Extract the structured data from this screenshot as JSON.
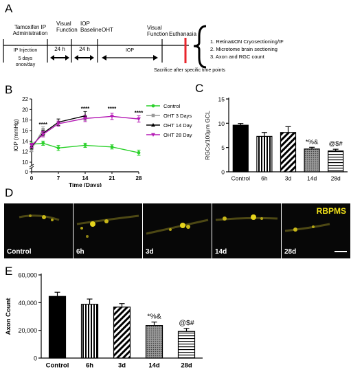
{
  "panels": {
    "a": "A",
    "b": "B",
    "c": "C",
    "d": "D",
    "e": "E"
  },
  "timeline": {
    "tamoxifen_line1": "Tamoxifen IP",
    "tamoxifen_line2": "Administration",
    "visual_function_1a": "Visual",
    "visual_function_1b": "Function",
    "iop_baseline_a": "IOP",
    "iop_baseline_b": "Baseline",
    "oht": "OHT",
    "visual_function_2a": "Visual",
    "visual_function_2b": "Function",
    "euthanasia": "Euthanasia",
    "ip_injection": "IP Injection",
    "interval_1": "24 h",
    "interval_2": "24 h",
    "iop": "IOP",
    "dosing_a": "5 days",
    "dosing_b": "once/day",
    "sacrifice": "Sacrifice after specific time points",
    "outcomes": [
      "1.  Retina&ON Cryosectioning/IF",
      "2.  Microtome brain sectioning",
      "3.  Axon and RGC count"
    ],
    "colors": {
      "euthanasia_line": "#e8242c"
    }
  },
  "chart_b": {
    "type": "line",
    "ylabel": "IOP (mmHg)",
    "xlabel": "Time (Days)",
    "ylim": [
      0,
      22
    ],
    "yticks": [
      0,
      10,
      12,
      14,
      16,
      18,
      20,
      22
    ],
    "xticks": [
      0,
      7,
      14,
      21,
      28
    ],
    "series": [
      {
        "name": "Control",
        "color": "#2bd12b",
        "marker": "circle",
        "x": [
          0,
          3,
          7,
          14,
          21,
          28
        ],
        "y": [
          13.4,
          13.6,
          12.7,
          13.2,
          12.9,
          11.8
        ],
        "err": [
          0.4,
          0.4,
          0.5,
          0.4,
          0.4,
          0.5
        ]
      },
      {
        "name": "OHT 3 Days",
        "color": "#9a9a9a",
        "marker": "square",
        "x": [
          0,
          3
        ],
        "y": [
          12.5,
          16.2
        ],
        "err": [
          0.5,
          0.5
        ]
      },
      {
        "name": "OHT 14 Days",
        "color": "#000000",
        "marker": "triangle",
        "x": [
          0,
          3,
          7,
          14
        ],
        "y": [
          13.0,
          15.5,
          17.6,
          18.8
        ],
        "err": [
          0.5,
          0.5,
          0.6,
          0.8
        ]
      },
      {
        "name": "OHT 28 Days",
        "color": "#b51cb5",
        "marker": "triangle-down",
        "x": [
          0,
          3,
          7,
          14,
          21,
          28
        ],
        "y": [
          13.2,
          15.3,
          17.3,
          18.3,
          18.7,
          18.2
        ],
        "err": [
          0.4,
          0.5,
          0.5,
          0.6,
          0.6,
          0.6
        ]
      }
    ],
    "annotations": [
      {
        "x": 3,
        "y": 16.8,
        "text": "****"
      },
      {
        "x": 14,
        "y": 19.8,
        "text": "****"
      },
      {
        "x": 21,
        "y": 19.8,
        "text": "****"
      },
      {
        "x": 28,
        "y": 19.0,
        "text": "****"
      }
    ]
  },
  "chart_c": {
    "type": "bar",
    "ylabel": "RGCs/100μm GCL",
    "categories": [
      "Control",
      "6h",
      "3d",
      "14d",
      "28d"
    ],
    "values": [
      9.6,
      7.3,
      8.1,
      4.7,
      4.3
    ],
    "errors": [
      0.35,
      0.8,
      1.2,
      0.35,
      0.35
    ],
    "ylim": [
      0,
      15
    ],
    "yticks": [
      0,
      5,
      10,
      15
    ],
    "fills": [
      "solid",
      "vertical",
      "diagonal",
      "dots",
      "horizontal"
    ],
    "annotations": [
      {
        "index": 3,
        "text": "*%&"
      },
      {
        "index": 4,
        "text": "@$#"
      }
    ]
  },
  "micrographs": {
    "stain": "RBPMS",
    "labels": [
      "Control",
      "6h",
      "3d",
      "14d",
      "28d"
    ]
  },
  "chart_e": {
    "type": "bar",
    "ylabel": "Axon Count",
    "categories": [
      "Control",
      "6h",
      "3d",
      "14d",
      "28d"
    ],
    "values": [
      44500,
      38800,
      36800,
      23500,
      19200
    ],
    "errors": [
      3000,
      3800,
      2500,
      2500,
      2200
    ],
    "ylim": [
      0,
      60000
    ],
    "yticks": [
      0,
      20000,
      40000,
      60000
    ],
    "ytick_labels": [
      "0",
      "20,000",
      "40,000",
      "60,000"
    ],
    "fills": [
      "solid",
      "vertical",
      "diagonal",
      "dots",
      "horizontal"
    ],
    "annotations": [
      {
        "index": 3,
        "text": "*%&"
      },
      {
        "index": 4,
        "text": "@$#"
      }
    ]
  }
}
